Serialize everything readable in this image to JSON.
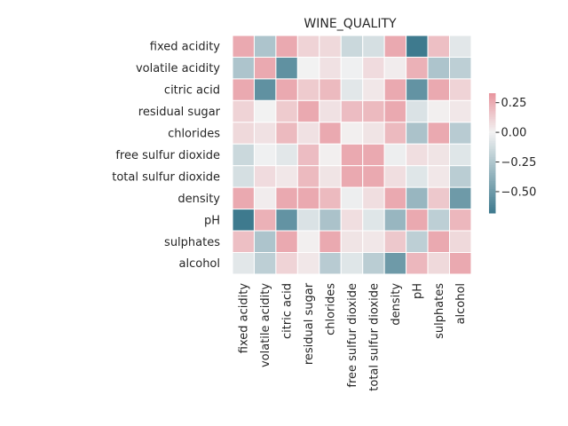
{
  "chart_data": {
    "type": "heatmap",
    "title": "WINE_QUALITY",
    "xlabel": "",
    "ylabel": "",
    "variables": [
      "fixed acidity",
      "volatile acidity",
      "citric acid",
      "residual sugar",
      "chlorides",
      "free sulfur dioxide",
      "total sulfur dioxide",
      "density",
      "pH",
      "sulphates",
      "alcohol"
    ],
    "matrix": [
      [
        0.26,
        -0.26,
        0.26,
        0.11,
        0.09,
        -0.15,
        -0.11,
        0.26,
        -0.68,
        0.18,
        -0.06
      ],
      [
        -0.26,
        0.26,
        -0.55,
        0.0,
        0.06,
        -0.01,
        0.08,
        0.02,
        0.23,
        -0.26,
        -0.2
      ],
      [
        0.26,
        -0.55,
        0.26,
        0.14,
        0.2,
        -0.06,
        0.04,
        0.26,
        -0.54,
        0.26,
        0.11
      ],
      [
        0.11,
        0.0,
        0.14,
        0.26,
        0.06,
        0.19,
        0.2,
        0.26,
        -0.09,
        0.01,
        0.04
      ],
      [
        0.09,
        0.06,
        0.2,
        0.06,
        0.26,
        0.01,
        0.05,
        0.2,
        -0.27,
        0.26,
        -0.22
      ],
      [
        -0.15,
        -0.01,
        -0.06,
        0.19,
        0.01,
        0.26,
        0.26,
        -0.02,
        0.07,
        0.05,
        -0.07
      ],
      [
        -0.11,
        0.08,
        0.04,
        0.2,
        0.05,
        0.26,
        0.26,
        0.07,
        -0.07,
        0.04,
        -0.21
      ],
      [
        0.26,
        0.02,
        0.26,
        0.26,
        0.2,
        -0.02,
        0.07,
        0.26,
        -0.34,
        0.15,
        -0.5
      ],
      [
        -0.68,
        0.23,
        -0.54,
        -0.09,
        -0.27,
        0.07,
        -0.07,
        -0.34,
        0.26,
        -0.2,
        0.21
      ],
      [
        0.18,
        -0.26,
        0.26,
        0.01,
        0.26,
        0.05,
        0.04,
        0.15,
        -0.2,
        0.26,
        0.09
      ],
      [
        -0.06,
        -0.2,
        0.11,
        0.04,
        -0.22,
        -0.07,
        -0.21,
        -0.5,
        0.21,
        0.09,
        0.26
      ]
    ],
    "colorbar": {
      "range": [
        -0.68,
        0.33
      ],
      "ticks": [
        0.25,
        0.0,
        -0.25,
        -0.5
      ],
      "tick_labels": [
        "0.25",
        "0.00",
        "−0.25",
        "−0.50"
      ],
      "low_color": "#3e7a8e",
      "mid_color": "#f2f2f2",
      "high_color": "#e8959e"
    },
    "grid": false,
    "cell_border_color": "#ffffff",
    "legend": "right colorbar"
  }
}
